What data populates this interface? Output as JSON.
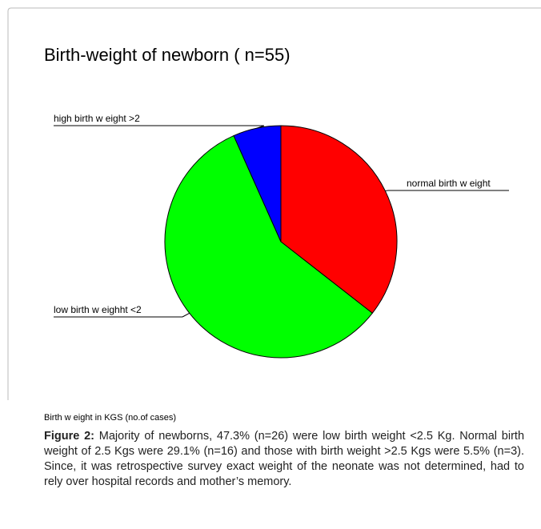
{
  "chart_data": {
    "type": "pie",
    "title": "Birth-weight of newborn ( n=55)",
    "categories": [
      "normal birth w eight",
      "low  birth w eighht <2",
      "high birth w eight >2"
    ],
    "values": [
      16,
      26,
      3
    ],
    "colors": [
      "#ff0000",
      "#00ff00",
      "#0000ff"
    ],
    "xlabel": "Birth w eight in KGS (no.of cases)"
  },
  "caption": {
    "label": "Figure 2:",
    "text": "Majority of newborns, 47.3% (n=26) were low birth weight <2.5 Kg. Normal birth weight of 2.5 Kgs were 29.1% (n=16) and those with birth weight >2.5 Kgs were 5.5% (n=3). Since, it was retrospective survey exact weight of the neonate was not determined, had to rely over hospital records and mother’s memory."
  }
}
